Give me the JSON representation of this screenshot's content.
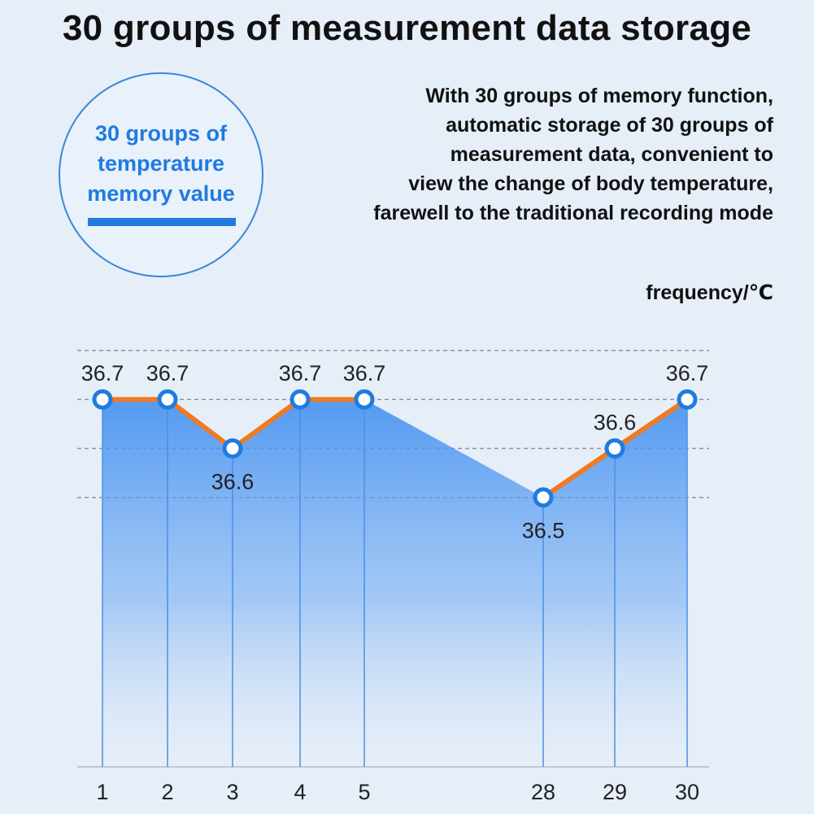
{
  "header": {
    "title": "30 groups of measurement data storage"
  },
  "badge": {
    "lines": [
      "30 groups of",
      "temperature",
      "memory value"
    ],
    "color": "#1f7be0"
  },
  "description": {
    "lines": [
      "With 30 groups of memory function,",
      "automatic storage of 30 groups of",
      "measurement data, convenient to",
      "view the change of body temperature,",
      "farewell to the traditional recording mode"
    ]
  },
  "chart_data": {
    "type": "area",
    "title": "",
    "xlabel": "",
    "ylabel": "frequency/℃",
    "categories": [
      "1",
      "2",
      "3",
      "4",
      "5",
      "28",
      "29",
      "30"
    ],
    "values": [
      36.7,
      36.7,
      36.6,
      36.7,
      36.7,
      36.5,
      36.6,
      36.7
    ],
    "value_labels": [
      "36.7",
      "36.7",
      "36.6",
      "36.7",
      "36.7",
      "36.5",
      "36.6",
      "36.7"
    ],
    "label_position": [
      "above",
      "above",
      "below",
      "above",
      "above",
      "below",
      "above",
      "above"
    ],
    "ylim": [
      35.95,
      36.8
    ],
    "gridlines": [
      36.8,
      36.7,
      36.6,
      36.5
    ],
    "line_color": "#f07a22",
    "fill_color": "#3a8bf0",
    "marker_color": "#1f7be0"
  }
}
